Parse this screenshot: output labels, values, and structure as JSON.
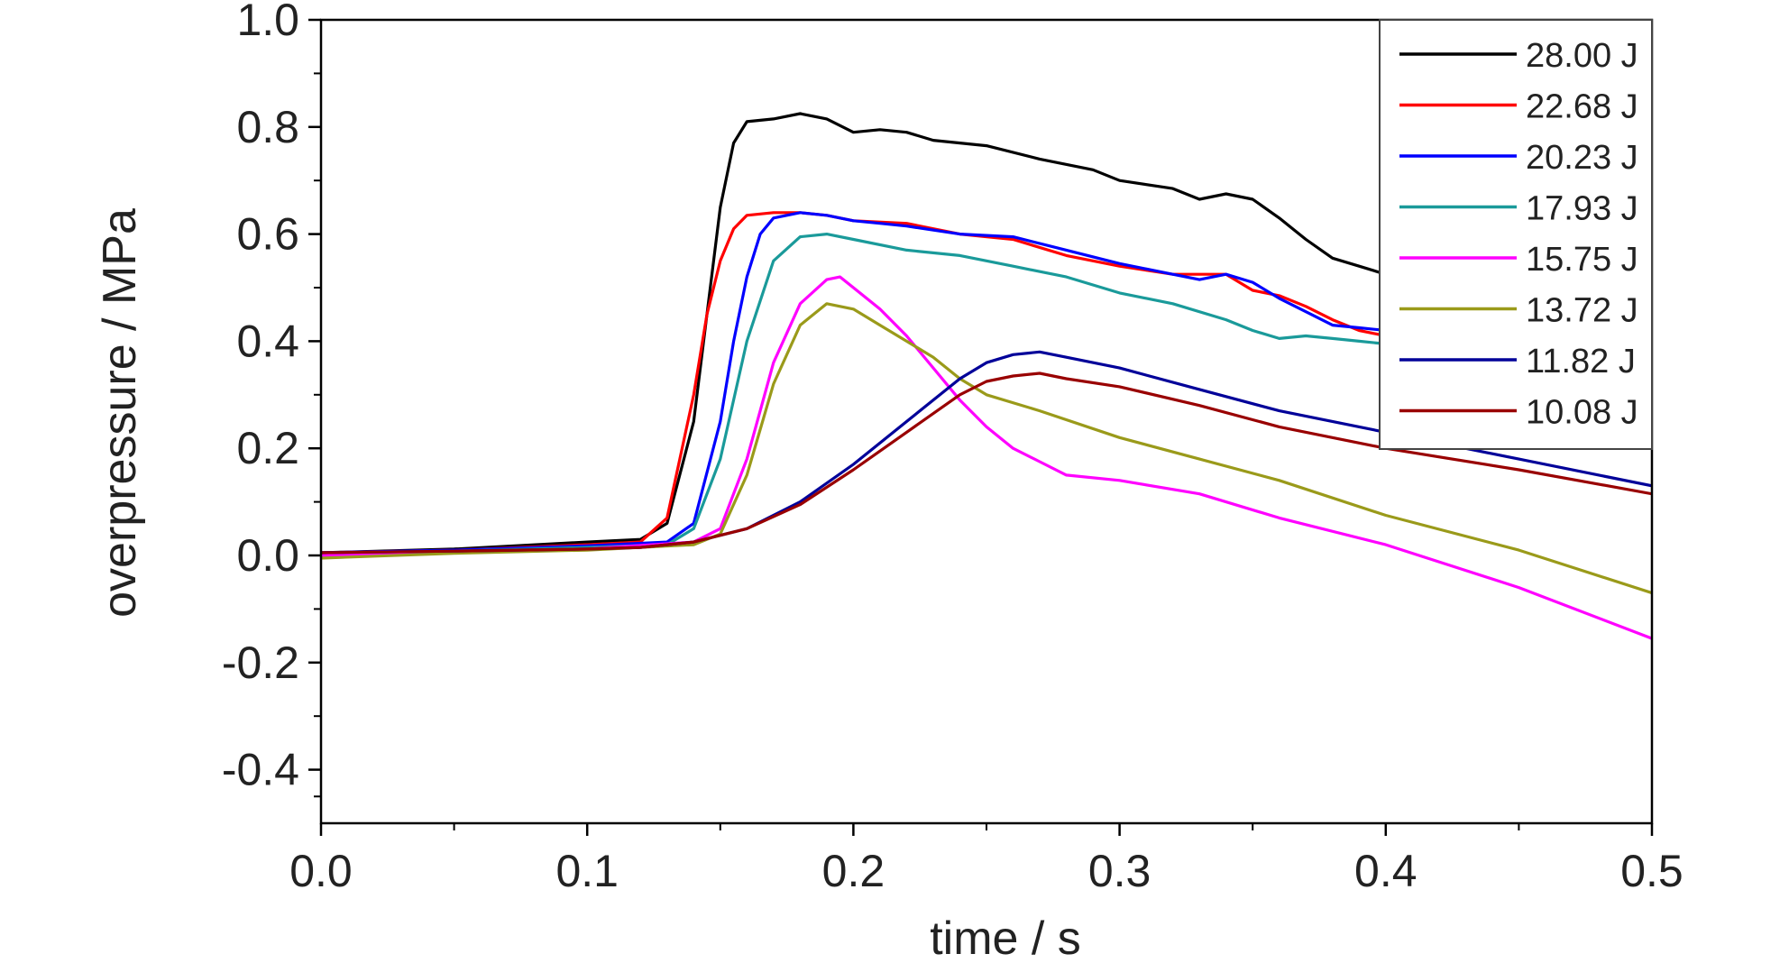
{
  "chart_data": {
    "type": "line",
    "title": "",
    "xlabel": "time / s",
    "ylabel": "overpressure / MPa",
    "xlim": [
      0.0,
      0.5
    ],
    "ylim": [
      -0.5,
      1.0
    ],
    "x_ticks": [
      0.0,
      0.1,
      0.2,
      0.3,
      0.4,
      0.5
    ],
    "x_tick_labels": [
      "0.0",
      "0.1",
      "0.2",
      "0.3",
      "0.4",
      "0.5"
    ],
    "y_ticks": [
      -0.4,
      -0.2,
      0.0,
      0.2,
      0.4,
      0.6,
      0.8,
      1.0
    ],
    "y_tick_labels": [
      "-0.4",
      "-0.2",
      "0.0",
      "0.2",
      "0.4",
      "0.6",
      "0.8",
      "1.0"
    ],
    "grid": false,
    "legend_position": "top-right",
    "series": [
      {
        "name": "28.00 J",
        "color": "#000000",
        "points": [
          [
            0.0,
            0.005
          ],
          [
            0.05,
            0.012
          ],
          [
            0.1,
            0.025
          ],
          [
            0.12,
            0.03
          ],
          [
            0.13,
            0.06
          ],
          [
            0.14,
            0.25
          ],
          [
            0.145,
            0.45
          ],
          [
            0.15,
            0.65
          ],
          [
            0.155,
            0.77
          ],
          [
            0.16,
            0.81
          ],
          [
            0.17,
            0.815
          ],
          [
            0.18,
            0.825
          ],
          [
            0.19,
            0.815
          ],
          [
            0.2,
            0.79
          ],
          [
            0.21,
            0.795
          ],
          [
            0.22,
            0.79
          ],
          [
            0.23,
            0.775
          ],
          [
            0.25,
            0.765
          ],
          [
            0.27,
            0.74
          ],
          [
            0.29,
            0.72
          ],
          [
            0.3,
            0.7
          ],
          [
            0.32,
            0.685
          ],
          [
            0.33,
            0.665
          ],
          [
            0.34,
            0.675
          ],
          [
            0.35,
            0.665
          ],
          [
            0.36,
            0.63
          ],
          [
            0.37,
            0.59
          ],
          [
            0.38,
            0.555
          ],
          [
            0.39,
            0.54
          ],
          [
            0.4,
            0.525
          ]
        ]
      },
      {
        "name": "22.68 J",
        "color": "#ff0000",
        "points": [
          [
            0.0,
            0.005
          ],
          [
            0.05,
            0.01
          ],
          [
            0.1,
            0.02
          ],
          [
            0.12,
            0.025
          ],
          [
            0.13,
            0.07
          ],
          [
            0.14,
            0.3
          ],
          [
            0.145,
            0.45
          ],
          [
            0.15,
            0.55
          ],
          [
            0.155,
            0.61
          ],
          [
            0.16,
            0.635
          ],
          [
            0.17,
            0.64
          ],
          [
            0.18,
            0.64
          ],
          [
            0.19,
            0.635
          ],
          [
            0.2,
            0.625
          ],
          [
            0.22,
            0.62
          ],
          [
            0.24,
            0.6
          ],
          [
            0.26,
            0.59
          ],
          [
            0.28,
            0.56
          ],
          [
            0.3,
            0.54
          ],
          [
            0.32,
            0.525
          ],
          [
            0.34,
            0.525
          ],
          [
            0.35,
            0.495
          ],
          [
            0.36,
            0.485
          ],
          [
            0.37,
            0.465
          ],
          [
            0.38,
            0.44
          ],
          [
            0.39,
            0.42
          ],
          [
            0.4,
            0.41
          ]
        ]
      },
      {
        "name": "20.23 J",
        "color": "#0000ff",
        "points": [
          [
            0.0,
            0.005
          ],
          [
            0.05,
            0.01
          ],
          [
            0.1,
            0.018
          ],
          [
            0.13,
            0.025
          ],
          [
            0.14,
            0.06
          ],
          [
            0.15,
            0.25
          ],
          [
            0.155,
            0.4
          ],
          [
            0.16,
            0.52
          ],
          [
            0.165,
            0.6
          ],
          [
            0.17,
            0.63
          ],
          [
            0.18,
            0.64
          ],
          [
            0.19,
            0.635
          ],
          [
            0.2,
            0.625
          ],
          [
            0.21,
            0.62
          ],
          [
            0.22,
            0.615
          ],
          [
            0.24,
            0.6
          ],
          [
            0.26,
            0.595
          ],
          [
            0.28,
            0.57
          ],
          [
            0.3,
            0.545
          ],
          [
            0.32,
            0.525
          ],
          [
            0.33,
            0.515
          ],
          [
            0.34,
            0.525
          ],
          [
            0.35,
            0.51
          ],
          [
            0.36,
            0.48
          ],
          [
            0.37,
            0.455
          ],
          [
            0.38,
            0.43
          ],
          [
            0.39,
            0.425
          ],
          [
            0.4,
            0.42
          ]
        ]
      },
      {
        "name": "17.93 J",
        "color": "#1a9a9a",
        "points": [
          [
            0.0,
            0.0
          ],
          [
            0.05,
            0.008
          ],
          [
            0.1,
            0.015
          ],
          [
            0.13,
            0.02
          ],
          [
            0.14,
            0.05
          ],
          [
            0.15,
            0.18
          ],
          [
            0.16,
            0.4
          ],
          [
            0.17,
            0.55
          ],
          [
            0.18,
            0.595
          ],
          [
            0.19,
            0.6
          ],
          [
            0.2,
            0.59
          ],
          [
            0.22,
            0.57
          ],
          [
            0.24,
            0.56
          ],
          [
            0.26,
            0.54
          ],
          [
            0.28,
            0.52
          ],
          [
            0.3,
            0.49
          ],
          [
            0.32,
            0.47
          ],
          [
            0.34,
            0.44
          ],
          [
            0.35,
            0.42
          ],
          [
            0.36,
            0.405
          ],
          [
            0.37,
            0.41
          ],
          [
            0.38,
            0.405
          ],
          [
            0.39,
            0.4
          ],
          [
            0.4,
            0.395
          ]
        ]
      },
      {
        "name": "15.75 J",
        "color": "#ff00ff",
        "points": [
          [
            0.0,
            0.0
          ],
          [
            0.05,
            0.006
          ],
          [
            0.1,
            0.012
          ],
          [
            0.14,
            0.025
          ],
          [
            0.15,
            0.05
          ],
          [
            0.16,
            0.18
          ],
          [
            0.17,
            0.36
          ],
          [
            0.18,
            0.47
          ],
          [
            0.19,
            0.515
          ],
          [
            0.195,
            0.52
          ],
          [
            0.2,
            0.5
          ],
          [
            0.21,
            0.46
          ],
          [
            0.22,
            0.41
          ],
          [
            0.23,
            0.35
          ],
          [
            0.24,
            0.29
          ],
          [
            0.25,
            0.24
          ],
          [
            0.26,
            0.2
          ],
          [
            0.27,
            0.175
          ],
          [
            0.28,
            0.15
          ],
          [
            0.3,
            0.14
          ],
          [
            0.33,
            0.115
          ],
          [
            0.36,
            0.07
          ],
          [
            0.4,
            0.02
          ],
          [
            0.45,
            -0.06
          ],
          [
            0.5,
            -0.155
          ]
        ]
      },
      {
        "name": "13.72 J",
        "color": "#9a9a1a",
        "points": [
          [
            0.0,
            -0.005
          ],
          [
            0.05,
            0.004
          ],
          [
            0.1,
            0.01
          ],
          [
            0.14,
            0.02
          ],
          [
            0.15,
            0.04
          ],
          [
            0.16,
            0.15
          ],
          [
            0.17,
            0.32
          ],
          [
            0.18,
            0.43
          ],
          [
            0.19,
            0.47
          ],
          [
            0.2,
            0.46
          ],
          [
            0.21,
            0.43
          ],
          [
            0.22,
            0.4
          ],
          [
            0.23,
            0.37
          ],
          [
            0.24,
            0.33
          ],
          [
            0.25,
            0.3
          ],
          [
            0.27,
            0.27
          ],
          [
            0.3,
            0.22
          ],
          [
            0.33,
            0.18
          ],
          [
            0.36,
            0.14
          ],
          [
            0.4,
            0.075
          ],
          [
            0.45,
            0.01
          ],
          [
            0.5,
            -0.07
          ]
        ]
      },
      {
        "name": "11.82 J",
        "color": "#000099",
        "points": [
          [
            0.0,
            0.005
          ],
          [
            0.05,
            0.008
          ],
          [
            0.1,
            0.012
          ],
          [
            0.12,
            0.015
          ],
          [
            0.14,
            0.025
          ],
          [
            0.16,
            0.05
          ],
          [
            0.18,
            0.1
          ],
          [
            0.2,
            0.17
          ],
          [
            0.22,
            0.25
          ],
          [
            0.24,
            0.33
          ],
          [
            0.25,
            0.36
          ],
          [
            0.26,
            0.375
          ],
          [
            0.27,
            0.38
          ],
          [
            0.28,
            0.37
          ],
          [
            0.3,
            0.35
          ],
          [
            0.33,
            0.31
          ],
          [
            0.36,
            0.27
          ],
          [
            0.4,
            0.23
          ],
          [
            0.45,
            0.18
          ],
          [
            0.5,
            0.13
          ]
        ]
      },
      {
        "name": "10.08 J",
        "color": "#990000",
        "points": [
          [
            0.0,
            0.005
          ],
          [
            0.05,
            0.008
          ],
          [
            0.1,
            0.012
          ],
          [
            0.12,
            0.015
          ],
          [
            0.14,
            0.025
          ],
          [
            0.16,
            0.05
          ],
          [
            0.18,
            0.095
          ],
          [
            0.2,
            0.16
          ],
          [
            0.22,
            0.23
          ],
          [
            0.24,
            0.3
          ],
          [
            0.25,
            0.325
          ],
          [
            0.26,
            0.335
          ],
          [
            0.27,
            0.34
          ],
          [
            0.28,
            0.33
          ],
          [
            0.3,
            0.315
          ],
          [
            0.33,
            0.28
          ],
          [
            0.36,
            0.24
          ],
          [
            0.4,
            0.2
          ],
          [
            0.45,
            0.16
          ],
          [
            0.5,
            0.115
          ]
        ]
      }
    ]
  }
}
